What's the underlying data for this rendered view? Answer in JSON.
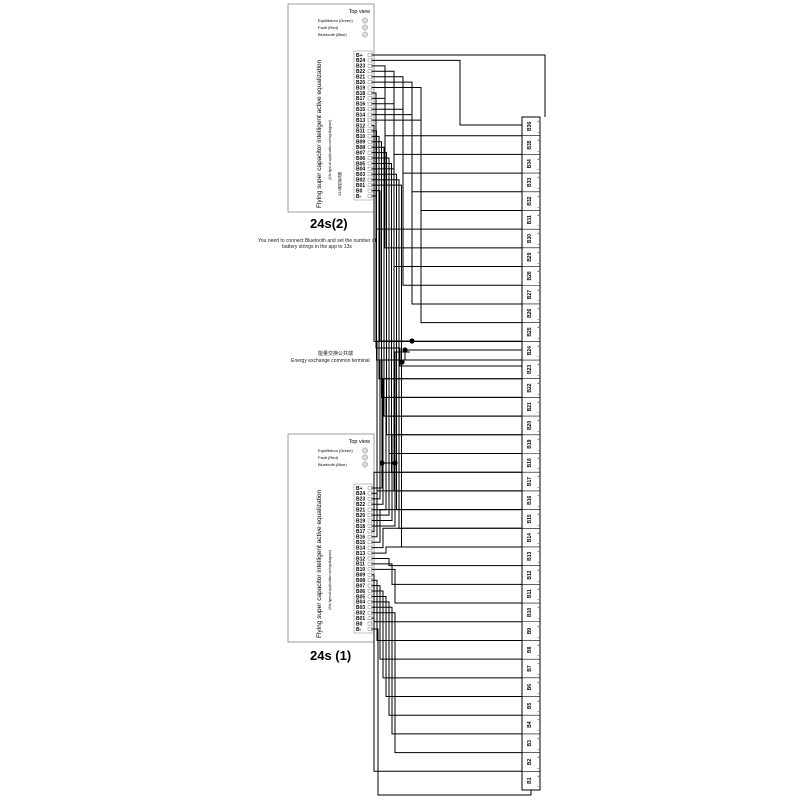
{
  "board_top": {
    "label": "24s(2)",
    "top_view": "Top view",
    "leds": [
      {
        "name": "Equilibrium",
        "color_word": "(Green)"
      },
      {
        "name": "Fault",
        "color_word": "(Red)"
      },
      {
        "name": "Bluetooth",
        "color_word": "(Blue)"
      }
    ],
    "title": "Flying super capacitor intelligent active equalization",
    "subtitle": "(24s typical application wiring diagram)",
    "chinese_subtitle": "24S典型接线图"
  },
  "board_bottom": {
    "label": "24s (1)",
    "top_view": "Top view",
    "leds": [
      {
        "name": "Equilibrium",
        "color_word": "(Green)"
      },
      {
        "name": "Fault",
        "color_word": "(Red)"
      },
      {
        "name": "Bluetooth",
        "color_word": "(Blue)"
      }
    ],
    "title": "Flying super capacitor intelligent active equalization",
    "subtitle": "(24s typical application wiring diagram)"
  },
  "pins": [
    "B+",
    "B24",
    "B23",
    "B22",
    "B21",
    "B20",
    "B19",
    "B18",
    "B17",
    "B16",
    "B15",
    "B14",
    "B13",
    "B12",
    "B11",
    "B10",
    "B09",
    "B08",
    "B07",
    "B06",
    "B05",
    "B04",
    "B03",
    "B02",
    "B01",
    "B0",
    "B-"
  ],
  "notes": {
    "bluetooth": "You need to connect Bluetooth and set the number of battery strings in the app to 13s",
    "energy_cn": "能量交换公共端",
    "energy_en": "Energy exchange common terminal"
  },
  "battery_cells": [
    "B36",
    "B35",
    "B34",
    "B33",
    "B32",
    "B31",
    "B30",
    "B29",
    "B28",
    "B27",
    "B26",
    "B25",
    "B24",
    "B23",
    "B22",
    "B21",
    "B20",
    "B19",
    "B18",
    "B17",
    "B16",
    "B15",
    "B14",
    "B13",
    "B12",
    "B11",
    "B10",
    "B9",
    "B8",
    "B7",
    "B6",
    "B5",
    "B4",
    "B3",
    "B2",
    "B1"
  ],
  "colors": {
    "line": "#000000",
    "board_border": "#888888",
    "text": "#222222"
  }
}
